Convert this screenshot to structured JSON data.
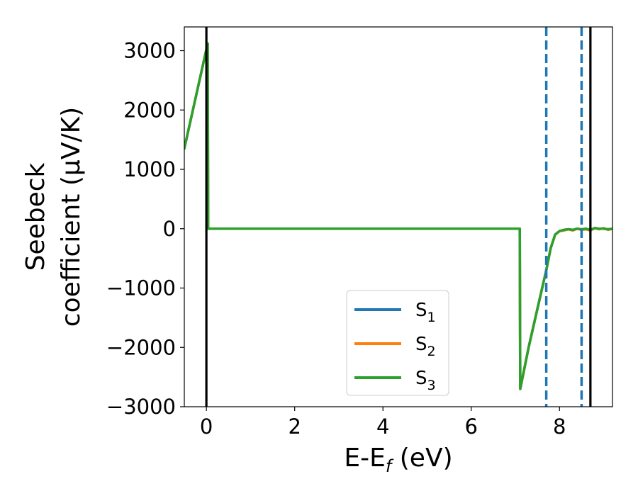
{
  "chart_data": {
    "type": "line",
    "xlabel": "E-E",
    "xlabel_sub": "f",
    "xlabel_unit": " (eV)",
    "ylabel_line1": "Seebeck",
    "ylabel_line2": "coefficient  (μV/K)",
    "xlim": [
      -0.5,
      9.2
    ],
    "ylim": [
      -3000,
      3400
    ],
    "x_ticks": [
      0,
      2,
      4,
      6,
      8
    ],
    "x_tick_labels": [
      "0",
      "2",
      "4",
      "6",
      "8"
    ],
    "y_ticks": [
      -3000,
      -2000,
      -1000,
      0,
      1000,
      2000,
      3000
    ],
    "y_tick_labels": [
      "−3000",
      "−2000",
      "−1000",
      "0",
      "1000",
      "2000",
      "3000"
    ],
    "grid": false,
    "legend_position": "lower-center",
    "series": [
      {
        "name": "S",
        "sub": "1",
        "color": "#1f77b4",
        "x": [
          -0.5,
          0.03,
          0.04,
          7.1,
          7.11,
          7.3,
          7.5,
          7.7,
          7.8,
          7.9,
          8.0,
          8.1,
          8.2,
          8.3,
          8.4,
          8.5,
          8.6,
          8.7,
          8.8,
          8.9,
          9.0,
          9.1,
          9.2
        ],
        "y": [
          1350,
          3120,
          0,
          0,
          -2700,
          -2000,
          -1350,
          -700,
          -330,
          -100,
          -40,
          -20,
          -10,
          -20,
          0,
          -10,
          0,
          -20,
          10,
          0,
          0,
          -10,
          0
        ]
      },
      {
        "name": "S",
        "sub": "2",
        "color": "#ff7f0e",
        "x": [
          -0.5,
          0.03,
          0.04,
          7.1,
          7.11,
          7.3,
          7.5,
          7.7,
          7.8,
          7.9,
          8.0,
          8.1,
          8.2,
          8.3,
          8.4,
          8.5,
          8.6,
          8.7,
          8.8,
          8.9,
          9.0,
          9.1,
          9.2
        ],
        "y": [
          1350,
          3120,
          0,
          0,
          -2700,
          -2000,
          -1350,
          -700,
          -330,
          -100,
          -40,
          -30,
          -10,
          -30,
          0,
          -20,
          -10,
          -30,
          10,
          -10,
          10,
          -20,
          0
        ]
      },
      {
        "name": "S",
        "sub": "3",
        "color": "#2ca02c",
        "x": [
          -0.5,
          0.03,
          0.04,
          7.1,
          7.11,
          7.3,
          7.5,
          7.7,
          7.8,
          7.9,
          8.0,
          8.1,
          8.2,
          8.3,
          8.4,
          8.5,
          8.6,
          8.7,
          8.8,
          8.9,
          9.0,
          9.1,
          9.2
        ],
        "y": [
          1350,
          3120,
          0,
          0,
          -2700,
          -2000,
          -1350,
          -700,
          -330,
          -100,
          -40,
          -20,
          -10,
          -20,
          0,
          -10,
          0,
          -20,
          10,
          0,
          0,
          -10,
          0
        ]
      }
    ],
    "vlines": [
      {
        "x": 0.0,
        "style": "solid",
        "color": "#000000"
      },
      {
        "x": 7.7,
        "style": "dashed",
        "color": "#1f77b4"
      },
      {
        "x": 8.5,
        "style": "dashed",
        "color": "#1f77b4"
      },
      {
        "x": 8.7,
        "style": "solid",
        "color": "#000000"
      }
    ]
  }
}
